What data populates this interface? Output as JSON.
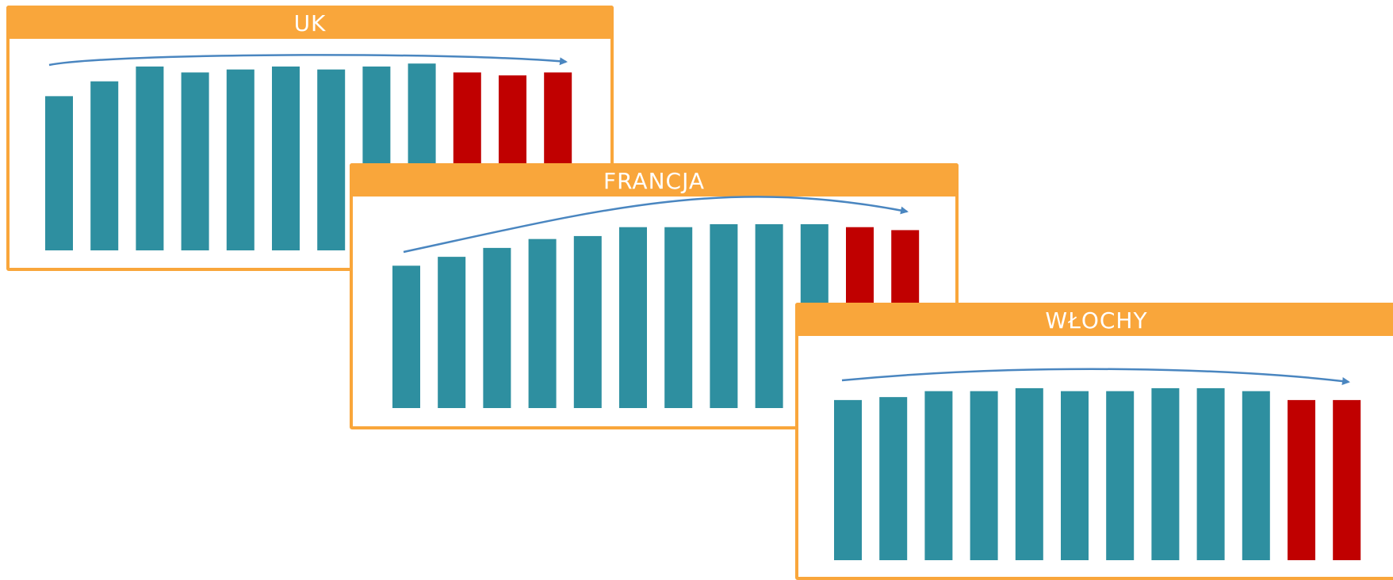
{
  "colors": {
    "frame": "#f9a63b",
    "bar": "#2e8fa0",
    "bar_highlight": "#c00000",
    "trend_arrow": "#4a86c0"
  },
  "chart_data": [
    {
      "type": "bar",
      "title": "UK",
      "values": [
        52,
        57,
        62,
        60,
        61,
        62,
        61,
        62,
        63,
        60,
        59,
        60
      ],
      "highlight_from": 9,
      "ylim": [
        0,
        70
      ],
      "trend": "rising-then-flat arrow"
    },
    {
      "type": "bar",
      "title": "FRANCJA",
      "values": [
        48,
        51,
        54,
        57,
        58,
        61,
        61,
        62,
        62,
        62,
        61,
        60
      ],
      "highlight_from": 10,
      "ylim": [
        0,
        70
      ],
      "trend": "rising-then-flat arrow"
    },
    {
      "type": "bar",
      "title": "WŁOCHY",
      "values": [
        54,
        55,
        57,
        57,
        58,
        57,
        57,
        58,
        58,
        57,
        54,
        54
      ],
      "highlight_from": 10,
      "ylim": [
        0,
        70
      ],
      "trend": "flat arrow"
    }
  ]
}
